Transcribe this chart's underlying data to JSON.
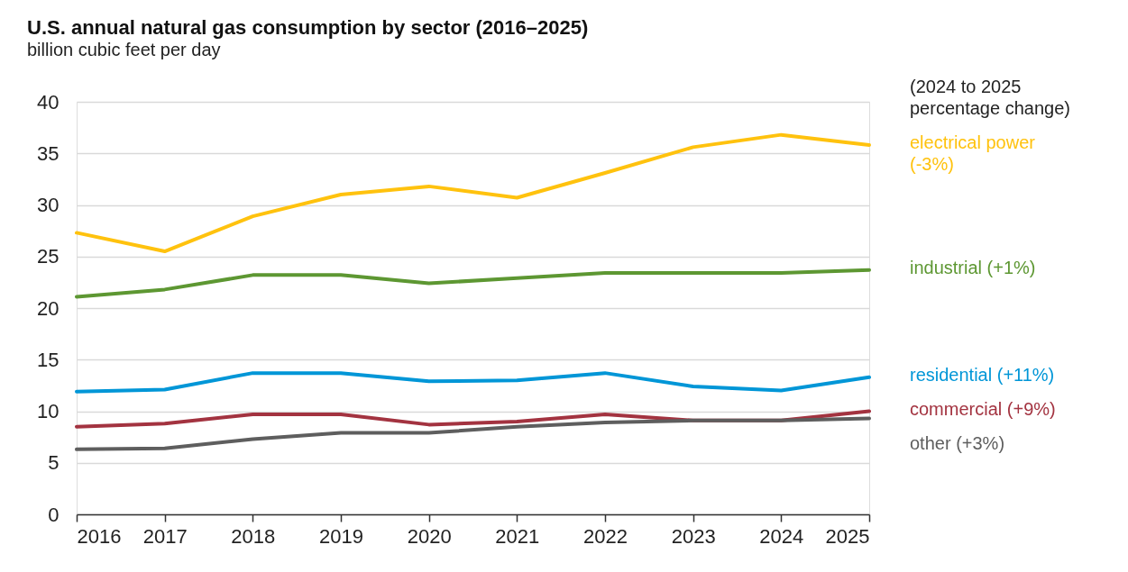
{
  "chart_data": {
    "type": "line",
    "title": "U.S. annual natural gas consumption by sector (2016–2025)",
    "subtitle": "billion cubic feet per day",
    "x": [
      2016,
      2017,
      2018,
      2019,
      2020,
      2021,
      2022,
      2023,
      2024,
      2025
    ],
    "series": [
      {
        "name": "electrical power (-3%)",
        "color": "#ffc20e",
        "values": [
          27.3,
          25.5,
          28.9,
          31.0,
          31.8,
          30.7,
          33.1,
          35.6,
          36.8,
          35.8
        ]
      },
      {
        "name": "industrial (+1%)",
        "color": "#5d9732",
        "values": [
          21.1,
          21.8,
          23.2,
          23.2,
          22.4,
          22.9,
          23.4,
          23.4,
          23.4,
          23.7
        ]
      },
      {
        "name": "residential (+11%)",
        "color": "#0096d7",
        "values": [
          11.9,
          12.1,
          13.7,
          13.7,
          12.9,
          13.0,
          13.7,
          12.4,
          12.0,
          13.3
        ]
      },
      {
        "name": "commercial (+9%)",
        "color": "#a33340",
        "values": [
          8.5,
          8.8,
          9.7,
          9.7,
          8.7,
          9.0,
          9.7,
          9.1,
          9.1,
          10.0
        ]
      },
      {
        "name": "other (+3%)",
        "color": "#5e5e5e",
        "values": [
          6.3,
          6.4,
          7.3,
          7.9,
          7.9,
          8.5,
          8.9,
          9.1,
          9.1,
          9.3
        ]
      }
    ],
    "xlim": [
      2016,
      2025
    ],
    "xticks": [
      2016,
      2017,
      2018,
      2019,
      2020,
      2021,
      2022,
      2023,
      2024,
      2025
    ],
    "ylim": [
      0,
      40
    ],
    "yticks": [
      0,
      5,
      10,
      15,
      20,
      25,
      30,
      35,
      40
    ],
    "grid": "y",
    "legend": false,
    "marker": "none",
    "line_style": "solid",
    "annotations": [
      "(2024 to 2025 percentage change)"
    ]
  }
}
